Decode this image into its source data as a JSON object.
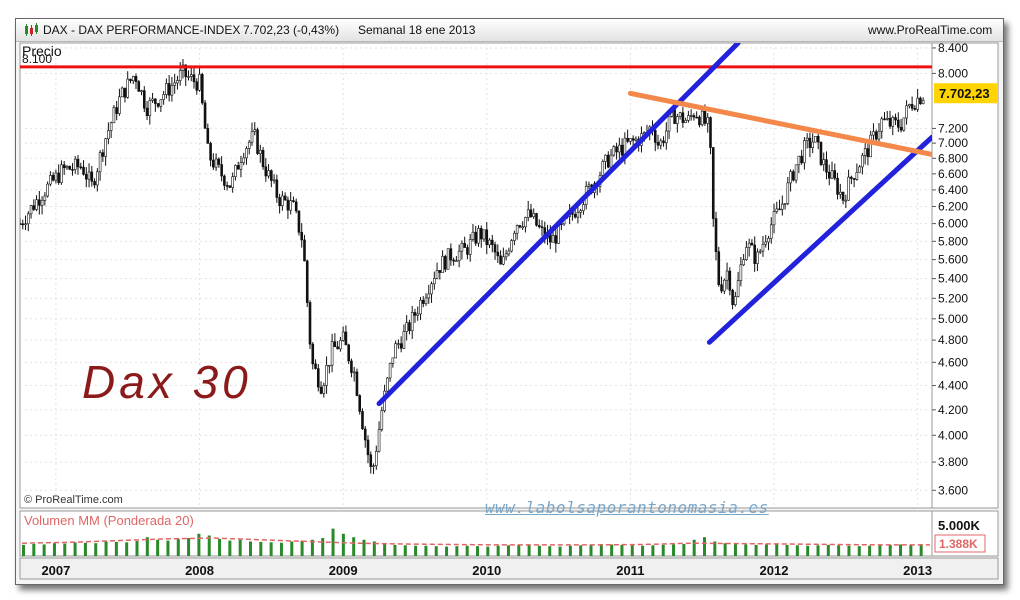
{
  "header": {
    "symbol": "DAX - DAX PERFORMANCE-INDEX",
    "last_value": "7.702,23 (-0,43%)",
    "period": "Semanal  18 ene 2013",
    "site": "www.ProRealTime.com"
  },
  "colors": {
    "resistance_line": "#ee1111",
    "trend_lines": "#2222dd",
    "descending_line": "#f4884a",
    "candles": "#111111",
    "volume_bars": "#2a8a2a",
    "volume_average": "#e06666",
    "annotation": "#8b1a1a",
    "price_tag_bg": "#ffd400"
  },
  "chart_data": {
    "type": "candlestick",
    "title": "DAX - DAX PERFORMANCE-INDEX",
    "price_panel_label": "Precio",
    "volume_panel_label": "Volumen MM (Ponderada 20)",
    "copyright": "© ProRealTime.com",
    "annotation_text": "Dax 30",
    "watermark": "www.labolsaporantonomasia.es",
    "current_price_label": "7.702,23",
    "current_price": 7702.23,
    "volume_scale_label": "5.000K",
    "current_volume_label": "1.388K",
    "resistance_level": 8100,
    "resistance_level_label": "8.100",
    "y_scale": "log",
    "ylim": [
      3480,
      8480
    ],
    "xlim": [
      2006.75,
      2013.1
    ],
    "x_tick_labels": [
      "2007",
      "2008",
      "2009",
      "2010",
      "2011",
      "2012",
      "2013"
    ],
    "x_ticks": [
      2007,
      2008,
      2009,
      2010,
      2011,
      2012,
      2013
    ],
    "y_ticks": [
      3600,
      3800,
      4000,
      4200,
      4400,
      4600,
      4800,
      5000,
      5200,
      5400,
      5600,
      5800,
      6000,
      6200,
      6400,
      6600,
      6800,
      7000,
      7200,
      8000,
      8400
    ],
    "y_tick_labels": [
      "3.600",
      "3.800",
      "4.000",
      "4.200",
      "4.400",
      "4.600",
      "4.800",
      "5.000",
      "5.200",
      "5.400",
      "5.600",
      "5.800",
      "6.000",
      "6.200",
      "6.400",
      "6.600",
      "6.800",
      "7.000",
      "7.200",
      "8.000",
      "8.400"
    ],
    "price_path": [
      [
        2006.75,
        6000
      ],
      [
        2006.9,
        6350
      ],
      [
        2007.05,
        6650
      ],
      [
        2007.18,
        6700
      ],
      [
        2007.25,
        6450
      ],
      [
        2007.35,
        7100
      ],
      [
        2007.45,
        7650
      ],
      [
        2007.55,
        8000
      ],
      [
        2007.63,
        7500
      ],
      [
        2007.7,
        7600
      ],
      [
        2007.8,
        7800
      ],
      [
        2007.88,
        8000
      ],
      [
        2007.95,
        7900
      ],
      [
        2008.0,
        7850
      ],
      [
        2008.06,
        6850
      ],
      [
        2008.15,
        6600
      ],
      [
        2008.22,
        6450
      ],
      [
        2008.3,
        6900
      ],
      [
        2008.38,
        7100
      ],
      [
        2008.45,
        6700
      ],
      [
        2008.55,
        6300
      ],
      [
        2008.65,
        6200
      ],
      [
        2008.72,
        5800
      ],
      [
        2008.78,
        4600
      ],
      [
        2008.85,
        4400
      ],
      [
        2008.92,
        4700
      ],
      [
        2009.0,
        4800
      ],
      [
        2009.08,
        4500
      ],
      [
        2009.15,
        4000
      ],
      [
        2009.2,
        3700
      ],
      [
        2009.27,
        4200
      ],
      [
        2009.35,
        4700
      ],
      [
        2009.45,
        4900
      ],
      [
        2009.55,
        5200
      ],
      [
        2009.65,
        5500
      ],
      [
        2009.75,
        5650
      ],
      [
        2009.85,
        5700
      ],
      [
        2009.95,
        5900
      ],
      [
        2010.05,
        5700
      ],
      [
        2010.1,
        5500
      ],
      [
        2010.2,
        6000
      ],
      [
        2010.3,
        6100
      ],
      [
        2010.38,
        5900
      ],
      [
        2010.45,
        5800
      ],
      [
        2010.55,
        6000
      ],
      [
        2010.65,
        6250
      ],
      [
        2010.75,
        6500
      ],
      [
        2010.85,
        6800
      ],
      [
        2010.95,
        6950
      ],
      [
        2011.1,
        7100
      ],
      [
        2011.15,
        7250
      ],
      [
        2011.2,
        6950
      ],
      [
        2011.3,
        7400
      ],
      [
        2011.4,
        7300
      ],
      [
        2011.45,
        7450
      ],
      [
        2011.55,
        7200
      ],
      [
        2011.58,
        5900
      ],
      [
        2011.62,
        5300
      ],
      [
        2011.68,
        5500
      ],
      [
        2011.72,
        5100
      ],
      [
        2011.8,
        5800
      ],
      [
        2011.88,
        5600
      ],
      [
        2011.95,
        5900
      ],
      [
        2012.05,
        6200
      ],
      [
        2012.15,
        6700
      ],
      [
        2012.22,
        6950
      ],
      [
        2012.28,
        7050
      ],
      [
        2012.35,
        6700
      ],
      [
        2012.42,
        6500
      ],
      [
        2012.48,
        6300
      ],
      [
        2012.55,
        6600
      ],
      [
        2012.65,
        6900
      ],
      [
        2012.75,
        7300
      ],
      [
        2012.82,
        7250
      ],
      [
        2012.88,
        7250
      ],
      [
        2012.95,
        7550
      ],
      [
        2013.05,
        7700
      ]
    ],
    "trend_lines": [
      {
        "color_key": "trend_lines",
        "from": [
          2009.25,
          4250
        ],
        "to": [
          2011.75,
          8480
        ]
      },
      {
        "color_key": "trend_lines",
        "from": [
          2011.55,
          4780
        ],
        "to": [
          2013.1,
          7080
        ]
      },
      {
        "color_key": "descending_line",
        "from": [
          2011.0,
          7700
        ],
        "to": [
          2013.1,
          6850
        ]
      }
    ],
    "volume": {
      "ylim": [
        0,
        5000
      ],
      "bars": [
        1300,
        1400,
        1350,
        1500,
        1450,
        1600,
        1550,
        1500,
        1700,
        1650,
        1600,
        1750,
        2200,
        1900,
        1800,
        2000,
        2100,
        2600,
        2400,
        2000,
        1800,
        1900,
        1700,
        1650,
        1600,
        1550,
        1700,
        1800,
        1900,
        2100,
        3200,
        2600,
        2200,
        1900,
        1700,
        1500,
        1300,
        1250,
        1200,
        1200,
        1150,
        1100,
        1150,
        1200,
        1150,
        1100,
        1200,
        1250,
        1300,
        1250,
        1200,
        1150,
        1100,
        1200,
        1250,
        1300,
        1400,
        1350,
        1300,
        1250,
        1200,
        1250,
        1300,
        1350,
        1400,
        1900,
        2200,
        1700,
        1500,
        1400,
        1350,
        1300,
        1350,
        1400,
        1300,
        1250,
        1200,
        1250,
        1300,
        1250,
        1200,
        1150,
        1200,
        1250,
        1300,
        1350,
        1300,
        1388
      ],
      "average": [
        1500,
        1600,
        1800,
        2000,
        2100,
        1900,
        1700,
        1500,
        1400,
        1350,
        1300,
        1300,
        1300,
        1350,
        1500,
        1450,
        1400,
        1350,
        1300,
        1300
      ]
    }
  }
}
